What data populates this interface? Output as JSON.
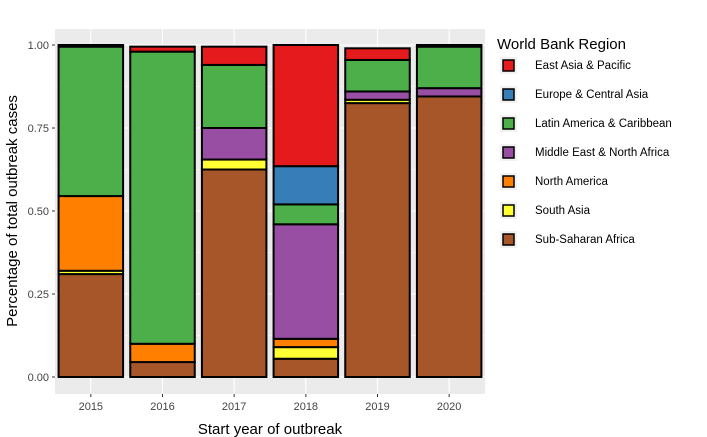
{
  "chart_data": {
    "type": "bar",
    "stacked": true,
    "xlabel": "Start year of outbreak",
    "ylabel": "Percentage of total outbreak cases",
    "categories": [
      "2015",
      "2016",
      "2017",
      "2018",
      "2019",
      "2020"
    ],
    "ylim": [
      0,
      1
    ],
    "yticks": [
      0,
      0.25,
      0.5,
      0.75,
      1
    ],
    "ytick_labels": [
      "0.00",
      "0.25",
      "0.50",
      "0.75",
      "1.00"
    ],
    "grid": true,
    "legend": {
      "title": "World Bank Region",
      "placement": "right"
    },
    "series": [
      {
        "name": "Sub-Saharan Africa",
        "color": "#A65628",
        "values": [
          0.31,
          0.045,
          0.625,
          0.055,
          0.825,
          0.845
        ]
      },
      {
        "name": "South Asia",
        "color": "#FFFF33",
        "values": [
          0.01,
          0.0,
          0.03,
          0.035,
          0.01,
          0.0
        ]
      },
      {
        "name": "North America",
        "color": "#FF7F00",
        "values": [
          0.225,
          0.055,
          0.0,
          0.025,
          0.0,
          0.0
        ]
      },
      {
        "name": "Middle East & North Africa",
        "color": "#984EA3",
        "values": [
          0.0,
          0.0,
          0.095,
          0.345,
          0.025,
          0.025
        ]
      },
      {
        "name": "Latin America & Caribbean",
        "color": "#4DAF4A",
        "values": [
          0.45,
          0.88,
          0.19,
          0.06,
          0.095,
          0.125
        ]
      },
      {
        "name": "Europe & Central Asia",
        "color": "#377EB8",
        "values": [
          0.0,
          0.0,
          0.0,
          0.115,
          0.0,
          0.0
        ]
      },
      {
        "name": "East Asia & Pacific",
        "color": "#E41A1C",
        "values": [
          0.005,
          0.015,
          0.055,
          0.365,
          0.035,
          0.005
        ]
      }
    ]
  }
}
